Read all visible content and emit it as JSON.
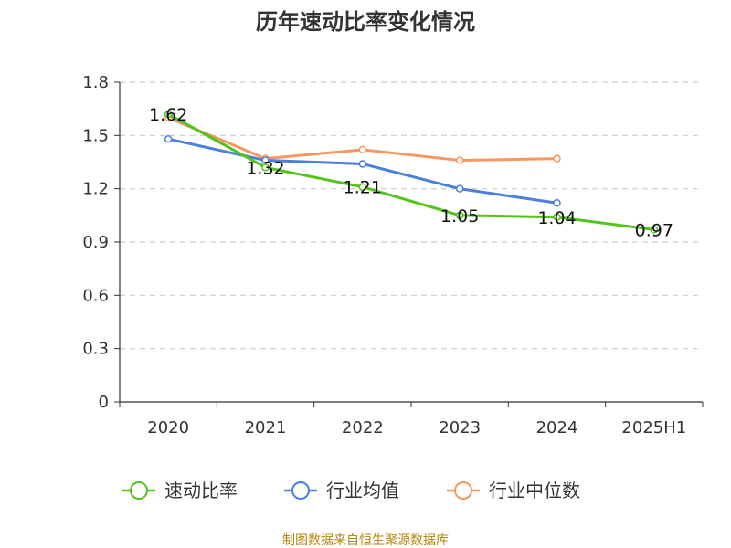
{
  "chart_data": {
    "type": "line",
    "title": "历年速动比率变化情况",
    "categories": [
      "2020",
      "2021",
      "2022",
      "2023",
      "2024",
      "2025H1"
    ],
    "y_ticks": [
      "0",
      "0.3",
      "0.6",
      "0.9",
      "1.2",
      "1.5",
      "1.8"
    ],
    "ylim": [
      0,
      1.8
    ],
    "grid": true,
    "legend_position": "bottom",
    "series": [
      {
        "name": "速动比率",
        "color": "#52c41a",
        "values": [
          1.62,
          1.32,
          1.21,
          1.05,
          1.04,
          0.97
        ],
        "labels": [
          "1.62",
          "1.32",
          "1.21",
          "1.05",
          "1.04",
          "0.97"
        ]
      },
      {
        "name": "行业均值",
        "color": "#4a7fdb",
        "values": [
          1.48,
          1.36,
          1.34,
          1.2,
          1.12,
          null
        ]
      },
      {
        "name": "行业中位数",
        "color": "#f89860",
        "values": [
          1.6,
          1.37,
          1.42,
          1.36,
          1.37,
          null
        ]
      }
    ],
    "source": "制图数据来自恒生聚源数据库"
  }
}
